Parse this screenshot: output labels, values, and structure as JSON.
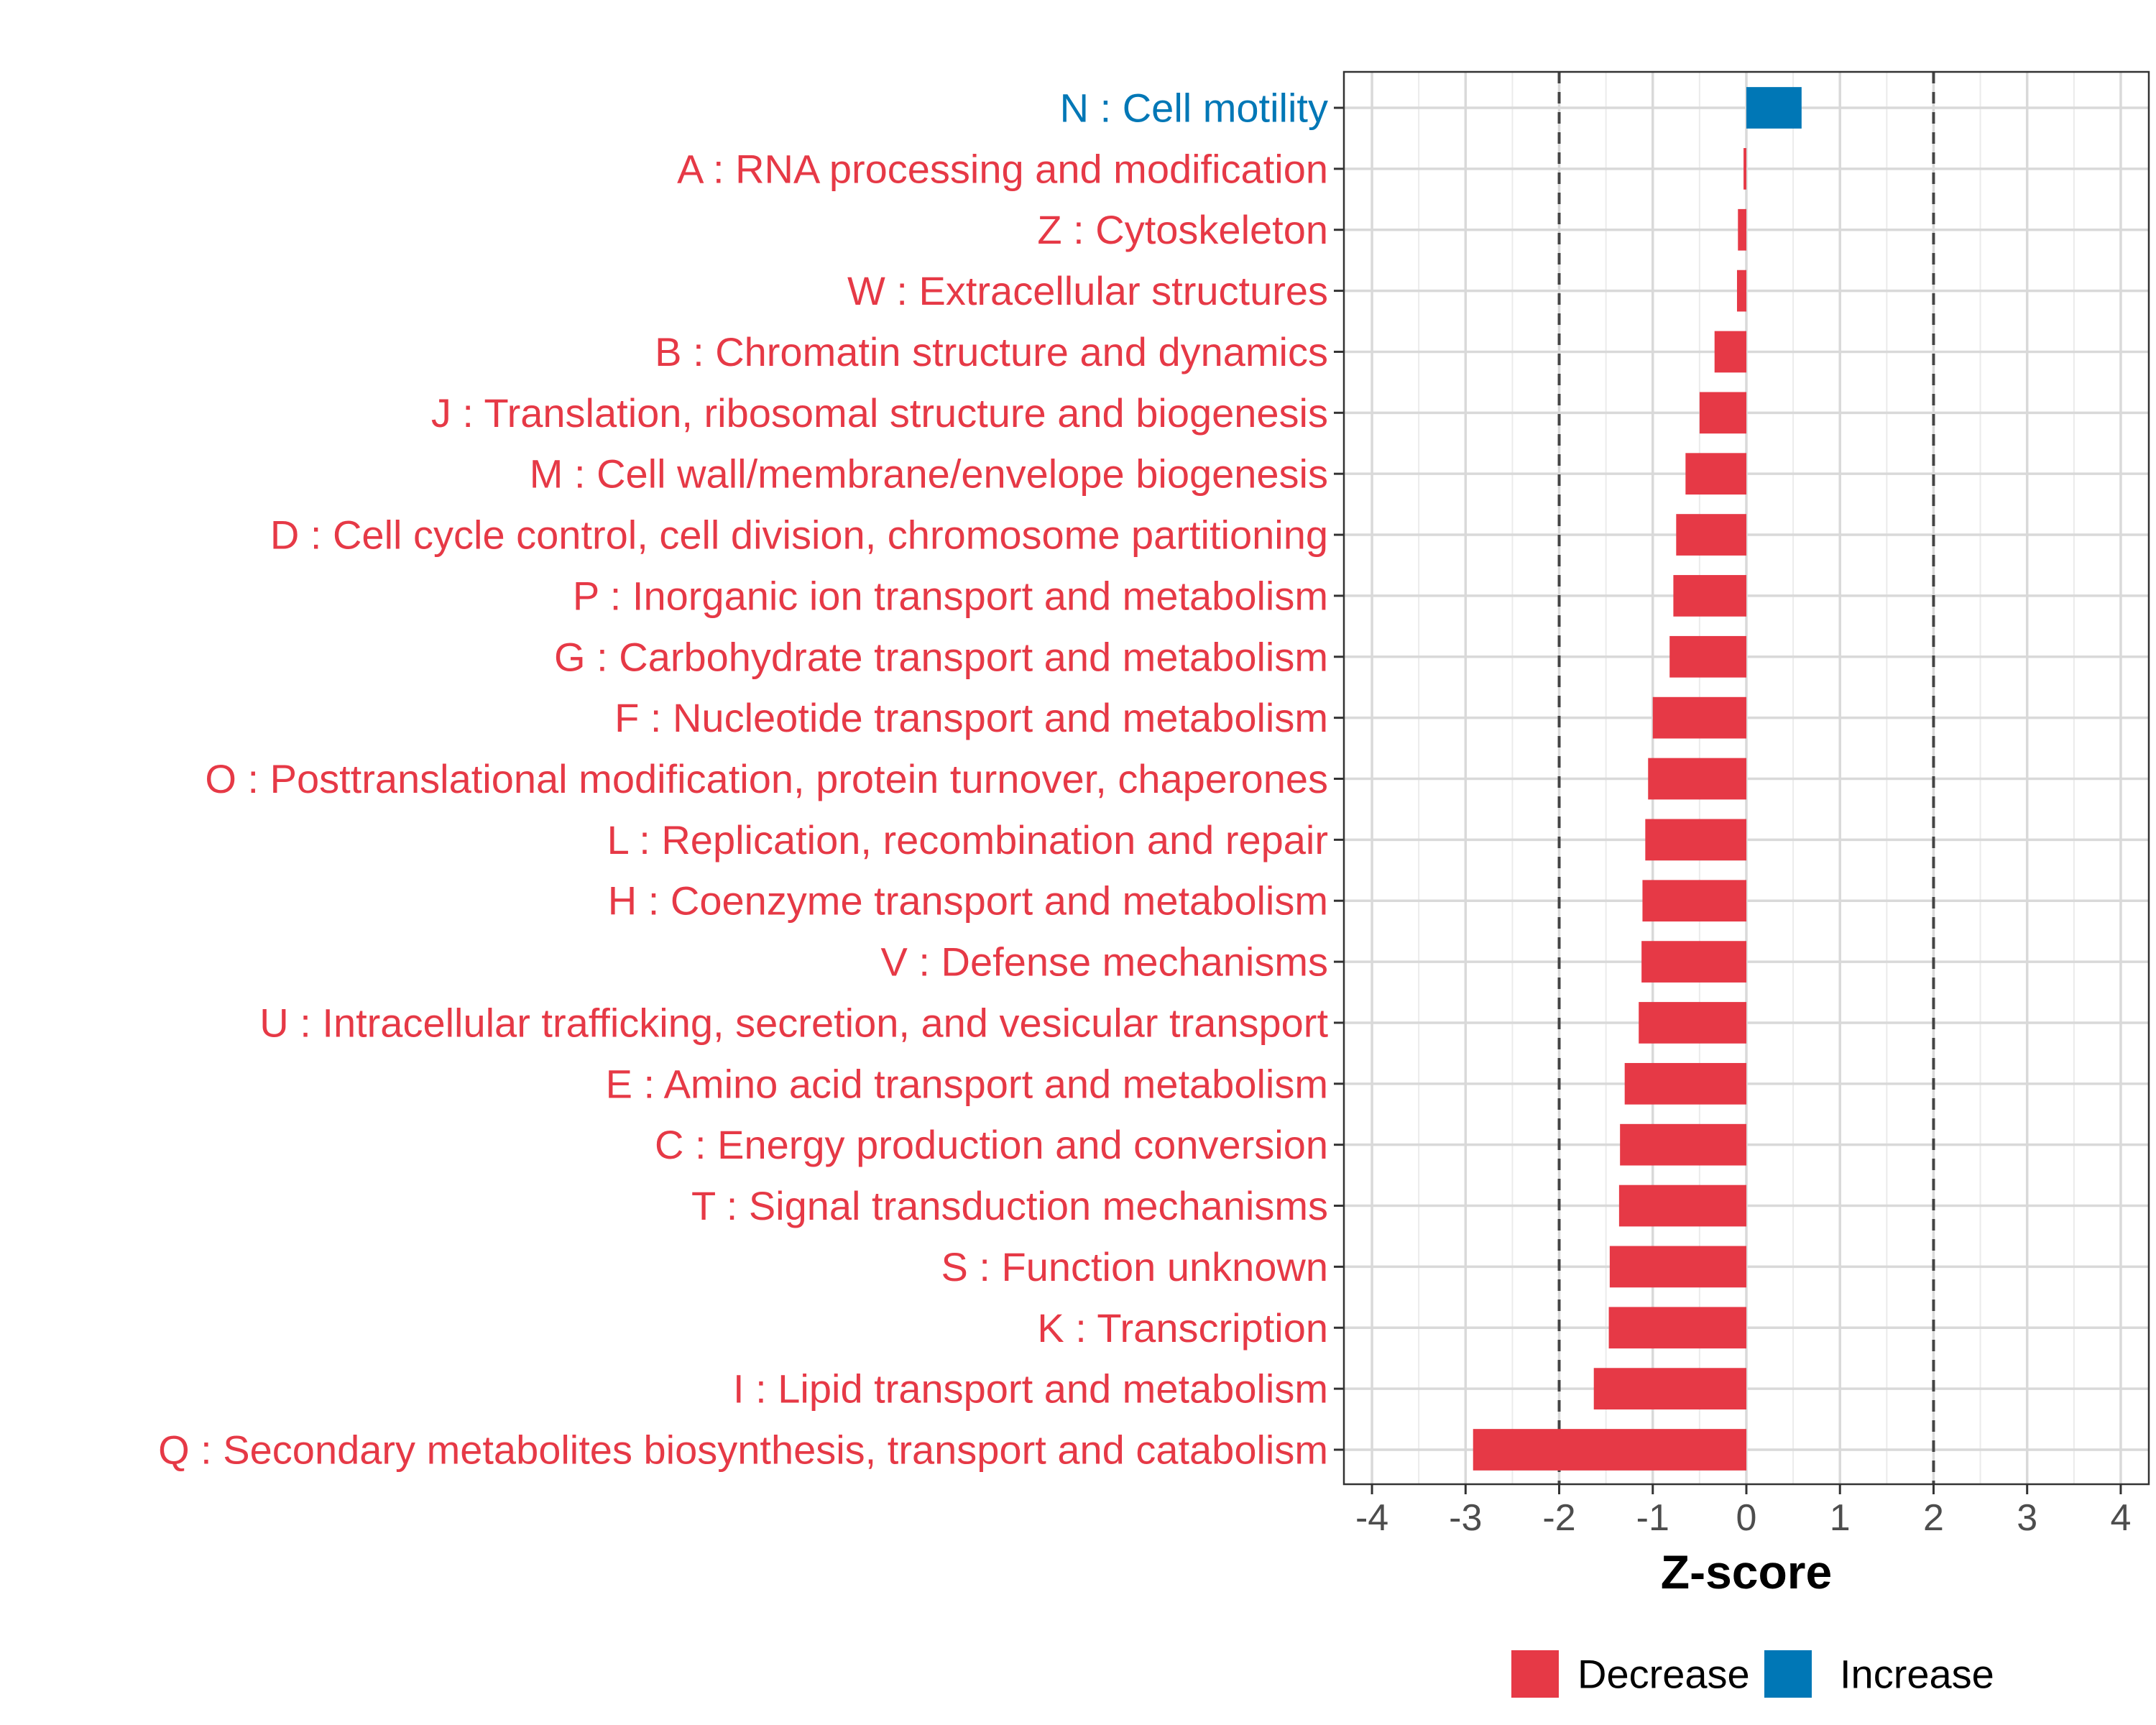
{
  "chart_data": {
    "type": "bar",
    "orientation": "horizontal",
    "xlabel": "Z-score",
    "xlim": [
      -4.3,
      4.3
    ],
    "xticks": [
      -4,
      -3,
      -2,
      -1,
      0,
      1,
      2,
      3,
      4
    ],
    "reference_lines": [
      -2,
      2
    ],
    "grid": true,
    "colors": {
      "Decrease": "#e63946",
      "Increase": "#0077b6"
    },
    "legend": {
      "position": "bottom",
      "entries": [
        {
          "label": "Decrease",
          "color": "#e63946"
        },
        {
          "label": "Increase",
          "color": "#0077b6"
        }
      ]
    },
    "categories": [
      {
        "label": "N : Cell motility",
        "value": 0.59,
        "direction": "Increase"
      },
      {
        "label": "A : RNA processing and modification",
        "value": -0.03,
        "direction": "Decrease"
      },
      {
        "label": "Z : Cytoskeleton",
        "value": -0.09,
        "direction": "Decrease"
      },
      {
        "label": "W : Extracellular structures",
        "value": -0.1,
        "direction": "Decrease"
      },
      {
        "label": "B : Chromatin structure and dynamics",
        "value": -0.34,
        "direction": "Decrease"
      },
      {
        "label": "J : Translation, ribosomal structure and biogenesis",
        "value": -0.5,
        "direction": "Decrease"
      },
      {
        "label": "M : Cell wall/membrane/envelope biogenesis",
        "value": -0.65,
        "direction": "Decrease"
      },
      {
        "label": "D : Cell cycle control, cell division, chromosome partitioning",
        "value": -0.75,
        "direction": "Decrease"
      },
      {
        "label": "P : Inorganic ion transport and metabolism",
        "value": -0.78,
        "direction": "Decrease"
      },
      {
        "label": "G : Carbohydrate transport and metabolism",
        "value": -0.82,
        "direction": "Decrease"
      },
      {
        "label": "F : Nucleotide transport and metabolism",
        "value": -1.0,
        "direction": "Decrease"
      },
      {
        "label": "O : Posttranslational modification, protein turnover, chaperones",
        "value": -1.05,
        "direction": "Decrease"
      },
      {
        "label": "L : Replication, recombination and repair",
        "value": -1.08,
        "direction": "Decrease"
      },
      {
        "label": "H : Coenzyme transport and metabolism",
        "value": -1.11,
        "direction": "Decrease"
      },
      {
        "label": "V : Defense mechanisms",
        "value": -1.12,
        "direction": "Decrease"
      },
      {
        "label": "U : Intracellular trafficking, secretion, and vesicular transport",
        "value": -1.15,
        "direction": "Decrease"
      },
      {
        "label": "E : Amino acid transport and metabolism",
        "value": -1.3,
        "direction": "Decrease"
      },
      {
        "label": "C : Energy production and conversion",
        "value": -1.35,
        "direction": "Decrease"
      },
      {
        "label": "T : Signal transduction mechanisms",
        "value": -1.36,
        "direction": "Decrease"
      },
      {
        "label": "S : Function unknown",
        "value": -1.46,
        "direction": "Decrease"
      },
      {
        "label": "K : Transcription",
        "value": -1.47,
        "direction": "Decrease"
      },
      {
        "label": "I : Lipid transport and metabolism",
        "value": -1.63,
        "direction": "Decrease"
      },
      {
        "label": "Q : Secondary metabolites biosynthesis, transport and catabolism",
        "value": -2.92,
        "direction": "Decrease"
      }
    ]
  }
}
